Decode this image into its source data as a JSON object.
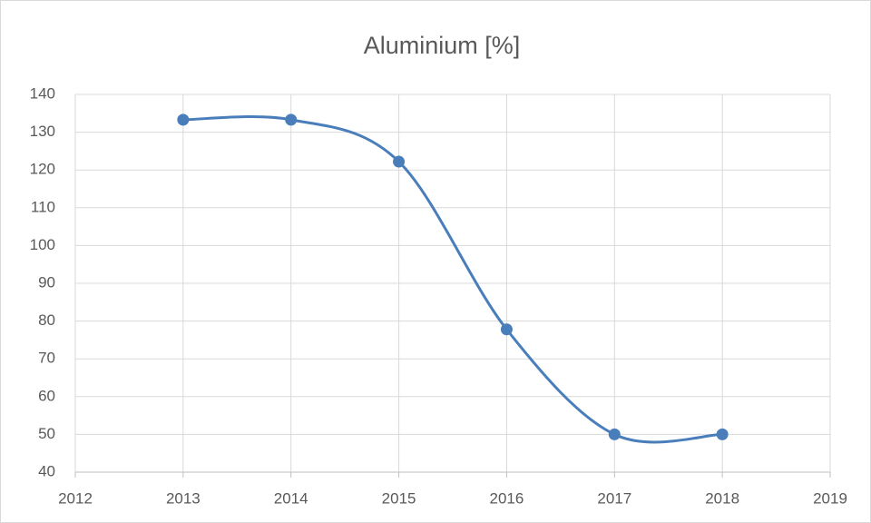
{
  "chart_data": {
    "type": "scatter",
    "title": "Aluminium [%]",
    "smooth": true,
    "markers": true,
    "grid": true,
    "series": [
      {
        "name": "Aluminium [%]",
        "color": "#4a7ebb",
        "x": [
          2013,
          2014,
          2015,
          2016,
          2017,
          2018
        ],
        "values": [
          133.3,
          133.3,
          122.2,
          77.8,
          50,
          50
        ]
      }
    ],
    "xlim": [
      2012,
      2019
    ],
    "xticks": [
      2012,
      2013,
      2014,
      2015,
      2016,
      2017,
      2018,
      2019
    ],
    "ylim": [
      40,
      140
    ],
    "yticks": [
      40,
      50,
      60,
      70,
      80,
      90,
      100,
      110,
      120,
      130,
      140
    ]
  }
}
